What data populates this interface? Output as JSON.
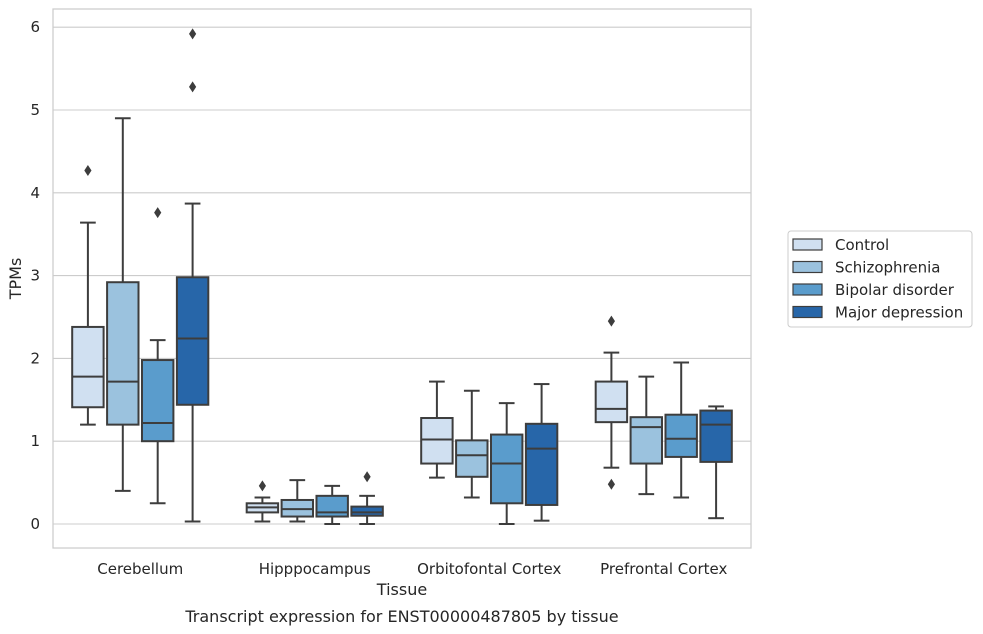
{
  "chart_data": {
    "type": "box",
    "title": "",
    "caption": "Transcript expression for ENST00000487805 by tissue",
    "xlabel": "Tissue",
    "ylabel": "TPMs",
    "ylim": [
      -0.29,
      6.22
    ],
    "yticks": [
      0,
      1,
      2,
      3,
      4,
      5,
      6
    ],
    "grid": "horizontal",
    "legend_position": "right",
    "categories": [
      "Cerebellum",
      "Hipppocampus",
      "Orbitofontal Cortex",
      "Prefrontal Cortex"
    ],
    "series": [
      {
        "name": "Control",
        "color": "#d0e0f1",
        "boxes": [
          {
            "whislo": 1.2,
            "q1": 1.41,
            "med": 1.78,
            "q3": 2.38,
            "whishi": 3.64,
            "fliers": [
              4.27
            ]
          },
          {
            "whislo": 0.03,
            "q1": 0.14,
            "med": 0.2,
            "q3": 0.25,
            "whishi": 0.32,
            "fliers": [
              0.46
            ]
          },
          {
            "whislo": 0.56,
            "q1": 0.73,
            "med": 1.02,
            "q3": 1.28,
            "whishi": 1.72,
            "fliers": []
          },
          {
            "whislo": 0.68,
            "q1": 1.23,
            "med": 1.39,
            "q3": 1.72,
            "whishi": 2.07,
            "fliers": [
              2.45,
              0.48
            ]
          }
        ]
      },
      {
        "name": "Schizophrenia",
        "color": "#9bc2de",
        "boxes": [
          {
            "whislo": 0.4,
            "q1": 1.2,
            "med": 1.72,
            "q3": 2.92,
            "whishi": 4.9,
            "fliers": []
          },
          {
            "whislo": 0.03,
            "q1": 0.09,
            "med": 0.18,
            "q3": 0.29,
            "whishi": 0.53,
            "fliers": []
          },
          {
            "whislo": 0.32,
            "q1": 0.57,
            "med": 0.83,
            "q3": 1.01,
            "whishi": 1.61,
            "fliers": []
          },
          {
            "whislo": 0.36,
            "q1": 0.73,
            "med": 1.17,
            "q3": 1.29,
            "whishi": 1.78,
            "fliers": []
          }
        ]
      },
      {
        "name": "Bipolar disorder",
        "color": "#5a9ccc",
        "boxes": [
          {
            "whislo": 0.25,
            "q1": 1.0,
            "med": 1.22,
            "q3": 1.98,
            "whishi": 2.22,
            "fliers": [
              3.76
            ]
          },
          {
            "whislo": 0.0,
            "q1": 0.09,
            "med": 0.14,
            "q3": 0.34,
            "whishi": 0.46,
            "fliers": []
          },
          {
            "whislo": 0.0,
            "q1": 0.25,
            "med": 0.73,
            "q3": 1.08,
            "whishi": 1.46,
            "fliers": []
          },
          {
            "whislo": 0.32,
            "q1": 0.81,
            "med": 1.03,
            "q3": 1.32,
            "whishi": 1.95,
            "fliers": []
          }
        ]
      },
      {
        "name": "Major depression",
        "color": "#2766a9",
        "boxes": [
          {
            "whislo": 0.03,
            "q1": 1.44,
            "med": 2.24,
            "q3": 2.98,
            "whishi": 3.87,
            "fliers": [
              5.28,
              5.92
            ]
          },
          {
            "whislo": 0.0,
            "q1": 0.1,
            "med": 0.14,
            "q3": 0.21,
            "whishi": 0.34,
            "fliers": [
              0.57
            ]
          },
          {
            "whislo": 0.04,
            "q1": 0.23,
            "med": 0.91,
            "q3": 1.21,
            "whishi": 1.69,
            "fliers": []
          },
          {
            "whislo": 0.07,
            "q1": 0.75,
            "med": 1.2,
            "q3": 1.37,
            "whishi": 1.42,
            "fliers": []
          }
        ]
      }
    ]
  }
}
